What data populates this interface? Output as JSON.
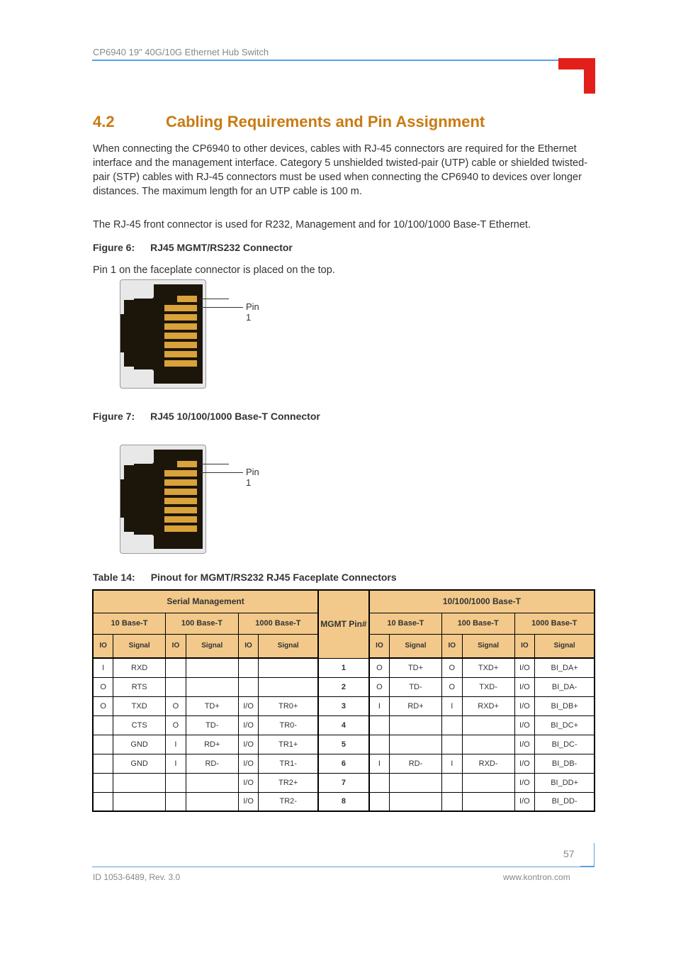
{
  "header": {
    "running_title": "CP6940 19\" 40G/10G Ethernet Hub Switch"
  },
  "section": {
    "number": "4.2",
    "title": "Cabling Requirements and Pin Assignment"
  },
  "intro": "When connecting the CP6940 to other devices, cables with RJ-45 connectors are required for the Ethernet interface and the management interface. Category 5 unshielded twisted-pair (UTP) cable or shielded twisted-pair (STP) cables with RJ-45 connectors must be used when connecting the CP6940 to devices over longer distances. The maximum length for an UTP cable is 100 m.",
  "fp_line": "The RJ-45 front connector is used for R232, Management and for 10/100/1000 Base-T Ethernet.",
  "figure6": {
    "label": "Figure 6:",
    "title": "RJ45 MGMT/RS232 Connector",
    "pin1_text": "Pin 1 on the faceplate connector is placed on the top."
  },
  "figure7": {
    "label": "Figure 7:",
    "title": "RJ45 10/100/1000 Base-T Connector"
  },
  "table": {
    "caption_label": "Table 14:",
    "caption_title": "Pinout for MGMT/RS232 RJ45 Faceplate Connectors",
    "top_right": "10/100/1000 Base-T",
    "mid_col": "MGMT Pin#",
    "groups_left": [
      "10 Base-T",
      "100 Base-T",
      "1000 Base-T"
    ],
    "groups_right": [
      "10 Base-T",
      "100 Base-T",
      "1000 Base-T"
    ],
    "sub": [
      "IO",
      "Signal"
    ],
    "rows": [
      {
        "c": [
          [
            "I",
            "RXD"
          ],
          [
            "",
            ""
          ],
          [
            "",
            ""
          ]
        ],
        "m": "1",
        "r": [
          [
            "O",
            "TD+"
          ],
          [
            "O",
            "TXD+"
          ],
          [
            "I/O",
            "BI_DA+"
          ]
        ]
      },
      {
        "c": [
          [
            "O",
            "RTS"
          ],
          [
            "",
            ""
          ],
          [
            "",
            ""
          ]
        ],
        "m": "2",
        "r": [
          [
            "O",
            "TD-"
          ],
          [
            "O",
            "TXD-"
          ],
          [
            "I/O",
            "BI_DA-"
          ]
        ]
      },
      {
        "c": [
          [
            "O",
            "TXD"
          ],
          [
            "O",
            "TD+"
          ],
          [
            "I/O",
            "TR0+"
          ]
        ],
        "m": "3",
        "r": [
          [
            "I",
            "RD+"
          ],
          [
            "I",
            "RXD+"
          ],
          [
            "I/O",
            "BI_DB+"
          ]
        ]
      },
      {
        "c": [
          [
            "",
            "CTS"
          ],
          [
            "O",
            "TD-"
          ],
          [
            "I/O",
            "TR0-"
          ]
        ],
        "m": "4",
        "r": [
          [
            "",
            ""
          ],
          [
            "",
            ""
          ],
          [
            "I/O",
            "BI_DC+"
          ]
        ]
      },
      {
        "c": [
          [
            "",
            "GND"
          ],
          [
            "I",
            "RD+"
          ],
          [
            "I/O",
            "TR1+"
          ]
        ],
        "m": "5",
        "r": [
          [
            "",
            ""
          ],
          [
            "",
            ""
          ],
          [
            "I/O",
            "BI_DC-"
          ]
        ]
      },
      {
        "c": [
          [
            "",
            "GND"
          ],
          [
            "I",
            "RD-"
          ],
          [
            "I/O",
            "TR1-"
          ]
        ],
        "m": "6",
        "r": [
          [
            "I",
            "RD-"
          ],
          [
            "I",
            "RXD-"
          ],
          [
            "I/O",
            "BI_DB-"
          ]
        ]
      },
      {
        "c": [
          [
            "",
            ""
          ],
          [
            "",
            ""
          ],
          [
            "I/O",
            "TR2+"
          ]
        ],
        "m": "7",
        "r": [
          [
            "",
            ""
          ],
          [
            "",
            ""
          ],
          [
            "I/O",
            "BI_DD+"
          ]
        ]
      },
      {
        "c": [
          [
            "",
            ""
          ],
          [
            "",
            ""
          ],
          [
            "I/O",
            "TR2-"
          ]
        ],
        "m": "8",
        "r": [
          [
            "",
            ""
          ],
          [
            "",
            ""
          ],
          [
            "I/O",
            "BI_DD-"
          ]
        ]
      }
    ]
  },
  "table_top_left": "Serial Management",
  "pin1_label": "Pin 1",
  "footer": {
    "page": "57",
    "left": "ID 1053-6489, Rev. 3.0",
    "right": "www.kontron.com"
  },
  "colors": {
    "rule": "#5aa0dd",
    "brand": "#e22019",
    "heading": "#c97a12",
    "table_header_bg": "#f2c98a",
    "pin_gold": "#d9a23a",
    "connector_body": "#1c150a"
  }
}
